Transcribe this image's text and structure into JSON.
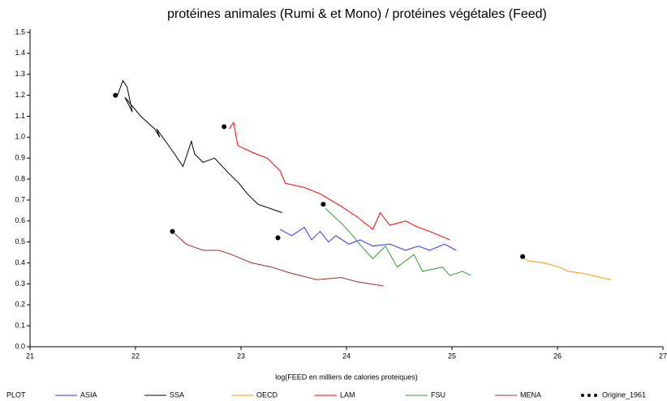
{
  "chart_data": {
    "type": "line",
    "title": "protéines animales (Rumi & et Mono) / protéines végétales (Feed)",
    "x_label": "log(FEED en milliers de calories proteiques)",
    "legend_title": "PLOT",
    "xlim": [
      21,
      27
    ],
    "xticks": [
      21,
      22,
      23,
      24,
      25,
      26,
      27
    ],
    "ylim": [
      0,
      1.5
    ],
    "yticks": [
      {
        "value": 0,
        "label": "0.0"
      },
      0.1,
      0.2,
      0.3,
      0.4,
      0.5,
      0.6,
      0.7,
      0.8,
      0.9,
      {
        "value": 1,
        "label": "1.0"
      },
      1.1,
      1.2,
      1.3,
      1.4,
      1.5
    ],
    "series": [
      {
        "name": "ASIA",
        "color": "#3333ff",
        "style": "line",
        "x": [
          23.37,
          23.48,
          23.6,
          23.67,
          23.75,
          23.83,
          23.9,
          24.02,
          24.13,
          24.25,
          24.41,
          24.56,
          24.68,
          24.79,
          24.93,
          25.04
        ],
        "values": [
          0.56,
          0.53,
          0.57,
          0.51,
          0.55,
          0.5,
          0.53,
          0.49,
          0.51,
          0.48,
          0.49,
          0.46,
          0.48,
          0.46,
          0.49,
          0.46
        ]
      },
      {
        "name": "SSA",
        "color": "#000000",
        "style": "line",
        "x": [
          21.83,
          21.88,
          21.92,
          21.97,
          21.9,
          22.05,
          22.18,
          22.23,
          22.2,
          22.37,
          22.45,
          22.53,
          22.56,
          22.64,
          22.75,
          22.88,
          22.98,
          23.06,
          23.16,
          23.39
        ],
        "values": [
          1.2,
          1.27,
          1.24,
          1.12,
          1.19,
          1.1,
          1.04,
          1.0,
          1.04,
          0.92,
          0.86,
          0.98,
          0.92,
          0.88,
          0.9,
          0.83,
          0.78,
          0.73,
          0.68,
          0.64
        ]
      },
      {
        "name": "OECD",
        "color": "#ff9900",
        "style": "line",
        "x": [
          25.67,
          25.72,
          25.87,
          26.02,
          26.1,
          26.25,
          26.41,
          26.51
        ],
        "values": [
          0.43,
          0.41,
          0.4,
          0.38,
          0.36,
          0.35,
          0.33,
          0.32
        ]
      },
      {
        "name": "LAM",
        "color": "#ff0000",
        "style": "line",
        "x": [
          22.89,
          22.93,
          22.97,
          23.14,
          23.25,
          23.37,
          23.42,
          23.6,
          23.75,
          23.95,
          24.1,
          24.25,
          24.32,
          24.41,
          24.56,
          24.68,
          24.79,
          24.98
        ],
        "values": [
          1.04,
          1.07,
          0.96,
          0.92,
          0.9,
          0.84,
          0.78,
          0.76,
          0.73,
          0.67,
          0.62,
          0.56,
          0.64,
          0.58,
          0.6,
          0.57,
          0.55,
          0.51
        ]
      },
      {
        "name": "FSU",
        "color": "#339933",
        "style": "line",
        "x": [
          23.8,
          23.95,
          24.06,
          24.14,
          24.25,
          24.37,
          24.48,
          24.64,
          24.72,
          24.91,
          24.98,
          25.1,
          25.18
        ],
        "values": [
          0.66,
          0.59,
          0.53,
          0.48,
          0.42,
          0.48,
          0.38,
          0.44,
          0.36,
          0.38,
          0.34,
          0.36,
          0.34
        ]
      },
      {
        "name": "MENA",
        "color": "#a52a2a",
        "style": "line",
        "x": [
          22.37,
          22.48,
          22.64,
          22.79,
          22.91,
          23.1,
          23.29,
          23.48,
          23.72,
          23.95,
          24.1,
          24.35
        ],
        "values": [
          0.54,
          0.49,
          0.46,
          0.46,
          0.44,
          0.4,
          0.38,
          0.35,
          0.32,
          0.33,
          0.31,
          0.29
        ]
      },
      {
        "name": "Origine_1961",
        "color": "#000000",
        "style": "markers",
        "x": [
          21.81,
          22.84,
          23.35,
          23.78,
          25.67,
          22.35
        ],
        "values": [
          1.2,
          1.05,
          0.52,
          0.68,
          0.43,
          0.55
        ]
      }
    ]
  }
}
